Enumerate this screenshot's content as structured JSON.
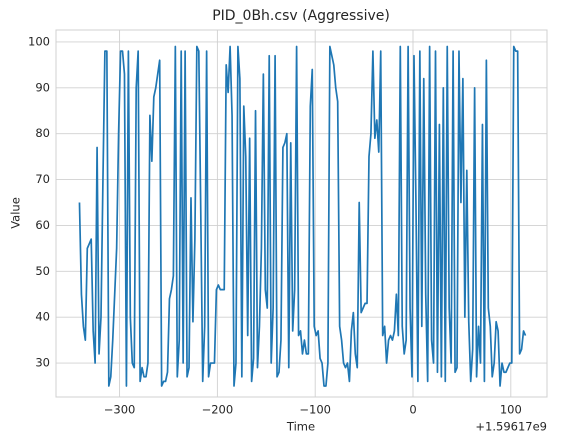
{
  "chart_data": {
    "type": "line",
    "title": "PID_0Bh.csv (Aggressive)",
    "xlabel": "Time",
    "ylabel": "Value",
    "x_offset_label": "+1.59617e9",
    "x": [
      -341,
      -339,
      -337,
      -335,
      -333,
      -331,
      -329,
      -327,
      -325,
      -323,
      -321,
      -319,
      -317,
      -315,
      -313,
      -311,
      -309,
      -307,
      -305,
      -303,
      -301,
      -299,
      -297,
      -295,
      -293,
      -291,
      -289,
      -287,
      -285,
      -283,
      -281,
      -279,
      -277,
      -275,
      -273,
      -271,
      -269,
      -267,
      -265,
      -263,
      -261,
      -259,
      -257,
      -255,
      -253,
      -251,
      -249,
      -247,
      -245,
      -243,
      -241,
      -239,
      -237,
      -235,
      -233,
      -231,
      -229,
      -227,
      -225,
      -223,
      -221,
      -219,
      -217,
      -215,
      -213,
      -211,
      -209,
      -207,
      -205,
      -203,
      -201,
      -199,
      -197,
      -195,
      -193,
      -191,
      -189,
      -187,
      -185,
      -183,
      -181,
      -179,
      -177,
      -175,
      -173,
      -171,
      -169,
      -167,
      -165,
      -163,
      -161,
      -159,
      -157,
      -155,
      -153,
      -151,
      -149,
      -147,
      -145,
      -143,
      -141,
      -139,
      -137,
      -135,
      -133,
      -131,
      -129,
      -127,
      -125,
      -123,
      -121,
      -119,
      -117,
      -115,
      -113,
      -111,
      -109,
      -107,
      -105,
      -103,
      -101,
      -99,
      -97,
      -95,
      -93,
      -91,
      -89,
      -87,
      -85,
      -83,
      -81,
      -79,
      -77,
      -75,
      -73,
      -71,
      -69,
      -67,
      -65,
      -63,
      -61,
      -59,
      -57,
      -55,
      -53,
      -51,
      -49,
      -47,
      -45,
      -43,
      -41,
      -39,
      -37,
      -35,
      -33,
      -31,
      -29,
      -27,
      -25,
      -23,
      -21,
      -19,
      -17,
      -15,
      -13,
      -11,
      -9,
      -7,
      -5,
      -3,
      -1,
      1,
      3,
      5,
      7,
      9,
      11,
      13,
      15,
      17,
      19,
      21,
      23,
      25,
      27,
      29,
      31,
      33,
      35,
      37,
      39,
      41,
      43,
      45,
      47,
      49,
      51,
      53,
      55,
      57,
      59,
      61,
      63,
      65,
      67,
      69,
      71,
      73,
      75,
      77,
      79,
      81,
      83,
      85,
      87,
      89,
      91,
      93,
      95,
      97,
      99,
      101,
      103,
      105,
      107,
      109,
      111,
      113,
      115
    ],
    "values": [
      65,
      45,
      38,
      35,
      55,
      56,
      57,
      37,
      30,
      77,
      32,
      40,
      70,
      98,
      98,
      25,
      27,
      35,
      45,
      55,
      80,
      98,
      98,
      93,
      25,
      98,
      40,
      30,
      29,
      90,
      98,
      26,
      29,
      27,
      27,
      30,
      84,
      74,
      88,
      90,
      93,
      96,
      25,
      26,
      26,
      28,
      44,
      46,
      49,
      99,
      27,
      35,
      98,
      30,
      98,
      27,
      29,
      66,
      39,
      57,
      99,
      98,
      63,
      26,
      38,
      98,
      27,
      30,
      30,
      30,
      46,
      47,
      46,
      46,
      46,
      95,
      89,
      99,
      84,
      25,
      30,
      99,
      92,
      27,
      86,
      75,
      36,
      79,
      26,
      31,
      85,
      29,
      38,
      55,
      93,
      46,
      42,
      97,
      30,
      42,
      97,
      27,
      28,
      35,
      77,
      78,
      80,
      29,
      78,
      37,
      46,
      99,
      36,
      37,
      32,
      35,
      32,
      32,
      86,
      94,
      38,
      36,
      37,
      31,
      30,
      25,
      25,
      30,
      99,
      97,
      95,
      90,
      87,
      38,
      35,
      30,
      29,
      30,
      26,
      37,
      41,
      32,
      29,
      65,
      41,
      42,
      43,
      43,
      75,
      80,
      98,
      79,
      83,
      76,
      98,
      36,
      38,
      30,
      35,
      36,
      35,
      37,
      45,
      36,
      99,
      38,
      32,
      35,
      99,
      42,
      27,
      97,
      65,
      26,
      98,
      38,
      92,
      45,
      26,
      99,
      35,
      30,
      98,
      28,
      82,
      27,
      90,
      26,
      99,
      42,
      30,
      98,
      28,
      29,
      98,
      65,
      92,
      40,
      72,
      39,
      26,
      33,
      90,
      27,
      38,
      30,
      82,
      26,
      96,
      42,
      38,
      27,
      30,
      39,
      37,
      25,
      30,
      28,
      28,
      29,
      30,
      30,
      99,
      98,
      98,
      32,
      33,
      37,
      36
    ],
    "color": "#1f77b4",
    "xlim": [
      -365,
      137
    ],
    "ylim": [
      22.6,
      102.6
    ],
    "xticks": [
      {
        "value": -300,
        "label": "−300"
      },
      {
        "value": -200,
        "label": "−200"
      },
      {
        "value": -100,
        "label": "−100"
      },
      0,
      100
    ],
    "yticks": [
      30,
      40,
      50,
      60,
      70,
      80,
      90,
      100
    ],
    "grid": true
  }
}
